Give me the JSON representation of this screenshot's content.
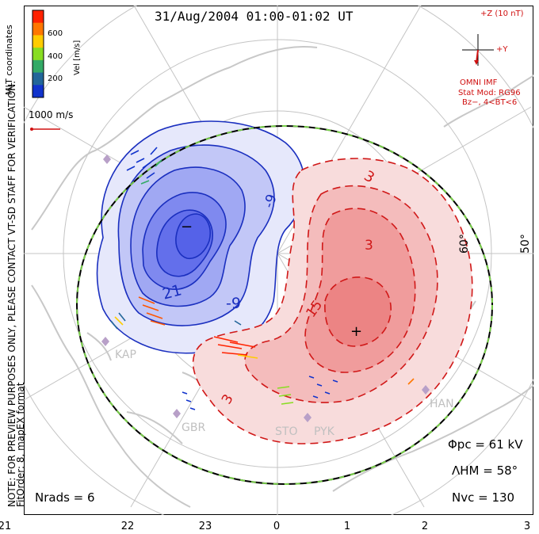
{
  "title": "31/Aug/2004 01:00-01:02 UT",
  "preview_note": "NOTE: FOR PREVIEW PURPOSES ONLY, PLEASE CONTACT VT-SD STAFF FOR VERIFICATION.",
  "fit_order": "FitOrder: 8, mapEX format",
  "coordinates": "MLT coordinates",
  "velocity_scale": {
    "label": "Vel [m/s]",
    "ticks": [
      "600",
      "400",
      "200"
    ],
    "colors": [
      "#ff2200",
      "#ff7700",
      "#ffcc00",
      "#88dd22",
      "#33aa66",
      "#226699",
      "#1133cc"
    ]
  },
  "reference_vector": "1000 m/s",
  "imf": {
    "z_label": "+Z (10 nT)",
    "y_label": "+Y",
    "source": "OMNI IMF",
    "model": "Stat Mod: RG96",
    "condition": "Bz−, 4<BT<6"
  },
  "latitudes": [
    "60°",
    "50°"
  ],
  "contour_labels": [
    "-9",
    "21",
    "-9",
    "−",
    "3",
    "15",
    "3",
    "3",
    "+"
  ],
  "stations": [
    "KAP",
    "GBR",
    "STO",
    "PYK",
    "HAN"
  ],
  "stats": {
    "phi_pc": "Φpc = 61 kV",
    "lambda_hm": "ΛHM = 58°",
    "n_vc": "Nvc = 130",
    "n_rads": "Nrads = 6"
  },
  "mlt_ticks": [
    "21",
    "22",
    "23",
    "0",
    "1",
    "2",
    "3"
  ],
  "colors": {
    "negative_fill": "#5a66ee",
    "positive_fill": "#f07a7a",
    "negative_line": "#1a2fbf",
    "positive_line": "#d01818",
    "coast": "#c8c8c8",
    "hmb": "#7ad04a"
  }
}
